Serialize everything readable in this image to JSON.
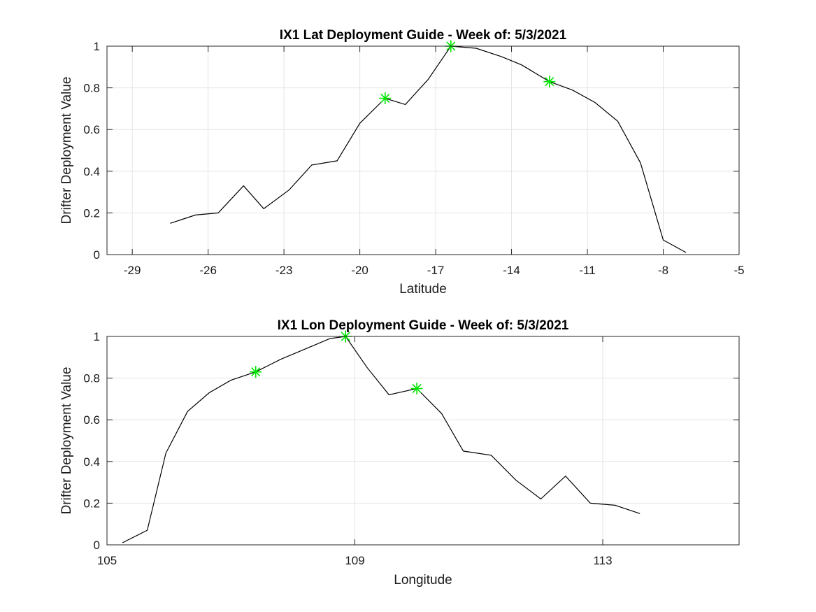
{
  "chart_data": [
    {
      "type": "line",
      "title": "IX1 Lat Deployment Guide - Week of: 5/3/2021",
      "xlabel": "Latitude",
      "ylabel": "Drifter Deployment Value",
      "xlim": [
        -30,
        -5
      ],
      "ylim": [
        0,
        1
      ],
      "xticks": [
        -29,
        -26,
        -23,
        -20,
        -17,
        -14,
        -11,
        -8,
        -5
      ],
      "yticks": [
        0,
        0.2,
        0.4,
        0.6,
        0.8,
        1
      ],
      "grid": true,
      "line_color": "#000000",
      "marker_color": "#00e600",
      "series": [
        {
          "x": [
            -27.5,
            -26.5,
            -25.6,
            -24.6,
            -23.8,
            -22.8,
            -21.9,
            -20.9,
            -20.0,
            -19.0,
            -18.2,
            -17.3,
            -16.4,
            -15.4,
            -14.4,
            -13.6,
            -12.5,
            -11.6,
            -10.7,
            -9.8,
            -8.9,
            -8.0,
            -7.1
          ],
          "y": [
            0.15,
            0.19,
            0.2,
            0.33,
            0.22,
            0.31,
            0.43,
            0.45,
            0.63,
            0.75,
            0.72,
            0.84,
            1.0,
            0.99,
            0.95,
            0.91,
            0.83,
            0.79,
            0.73,
            0.64,
            0.44,
            0.07,
            0.01
          ]
        }
      ],
      "markers": {
        "x": [
          -19.0,
          -16.4,
          -12.5
        ],
        "y": [
          0.75,
          1.0,
          0.83
        ]
      }
    },
    {
      "type": "line",
      "title": "IX1 Lon Deployment Guide - Week of: 5/3/2021",
      "xlabel": "Longitude",
      "ylabel": "Drifter Deployment Value",
      "xlim": [
        105,
        115.2
      ],
      "ylim": [
        0,
        1
      ],
      "xticks": [
        105,
        109,
        113
      ],
      "yticks": [
        0,
        0.2,
        0.4,
        0.6,
        0.8,
        1
      ],
      "grid": true,
      "line_color": "#000000",
      "marker_color": "#00e600",
      "series": [
        {
          "x": [
            105.25,
            105.65,
            105.95,
            106.3,
            106.65,
            107.0,
            107.4,
            107.8,
            108.2,
            108.6,
            108.85,
            109.2,
            109.55,
            110.0,
            110.4,
            110.75,
            111.2,
            111.6,
            112.0,
            112.4,
            112.8,
            113.2,
            113.6
          ],
          "y": [
            0.01,
            0.07,
            0.44,
            0.64,
            0.73,
            0.79,
            0.83,
            0.89,
            0.94,
            0.99,
            1.0,
            0.85,
            0.72,
            0.75,
            0.63,
            0.45,
            0.43,
            0.31,
            0.22,
            0.33,
            0.2,
            0.19,
            0.15
          ]
        }
      ],
      "markers": {
        "x": [
          107.4,
          108.85,
          110.0
        ],
        "y": [
          0.83,
          1.0,
          0.75
        ]
      }
    }
  ]
}
